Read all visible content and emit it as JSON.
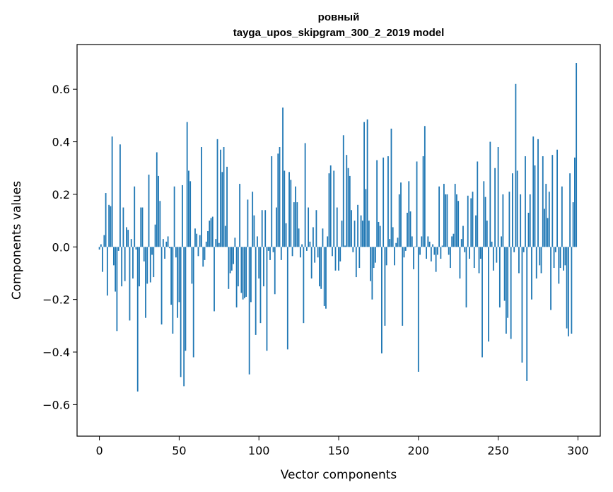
{
  "chart_data": {
    "type": "bar",
    "title_line1": "ровный",
    "title_line2": "tayga_upos_skipgram_300_2_2019 model",
    "xlabel": "Vector components",
    "ylabel": "Components values",
    "xlim": [
      -14,
      314
    ],
    "ylim": [
      -0.72,
      0.77
    ],
    "xticks": [
      0,
      50,
      100,
      150,
      200,
      250,
      300
    ],
    "xtick_labels": [
      "0",
      "50",
      "100",
      "150",
      "200",
      "250",
      "300"
    ],
    "yticks": [
      -0.6,
      -0.4,
      -0.2,
      0.0,
      0.2,
      0.4,
      0.6
    ],
    "ytick_labels": [
      "−0.6",
      "−0.4",
      "−0.2",
      "0.0",
      "0.2",
      "0.4",
      "0.6"
    ],
    "bar_color": "#1f77b4",
    "values": [
      -0.01,
      0.01,
      -0.095,
      0.045,
      0.205,
      -0.185,
      0.16,
      0.155,
      0.42,
      -0.07,
      -0.17,
      -0.32,
      -0.015,
      0.39,
      -0.15,
      0.15,
      -0.13,
      0.075,
      0.065,
      -0.28,
      0.03,
      -0.12,
      0.23,
      -0.01,
      -0.55,
      -0.15,
      0.15,
      0.15,
      -0.055,
      -0.27,
      -0.14,
      0.275,
      -0.135,
      -0.03,
      -0.115,
      0.085,
      0.36,
      0.27,
      0.175,
      -0.295,
      0.03,
      -0.045,
      0.02,
      0.04,
      -0.005,
      -0.22,
      -0.33,
      0.23,
      -0.04,
      -0.27,
      -0.21,
      -0.495,
      0.235,
      -0.53,
      -0.395,
      0.475,
      0.29,
      0.25,
      -0.14,
      -0.42,
      0.07,
      0.05,
      -0.035,
      0.045,
      0.38,
      -0.075,
      -0.05,
      0.02,
      0.06,
      0.1,
      0.11,
      0.115,
      -0.245,
      0.03,
      0.41,
      0.015,
      0.37,
      0.285,
      0.38,
      0.08,
      0.305,
      -0.16,
      -0.1,
      -0.09,
      -0.065,
      0.035,
      -0.23,
      -0.15,
      0.24,
      -0.175,
      -0.2,
      -0.195,
      -0.19,
      0.18,
      -0.485,
      -0.21,
      0.21,
      0.12,
      -0.335,
      0.04,
      -0.12,
      -0.29,
      0.14,
      -0.15,
      0.14,
      -0.395,
      -0.015,
      -0.05,
      0.345,
      -0.02,
      -0.18,
      0.15,
      0.355,
      0.38,
      -0.05,
      0.53,
      0.29,
      0.09,
      -0.39,
      0.285,
      0.255,
      -0.035,
      0.17,
      0.23,
      0.17,
      0.07,
      -0.04,
      0.01,
      -0.29,
      0.395,
      -0.015,
      0.15,
      0.02,
      -0.12,
      0.075,
      -0.06,
      0.14,
      -0.04,
      -0.15,
      -0.16,
      0.07,
      -0.225,
      -0.235,
      0.04,
      0.28,
      0.31,
      -0.035,
      0.29,
      -0.09,
      0.15,
      -0.09,
      -0.055,
      0.1,
      0.425,
      0.005,
      0.35,
      0.3,
      0.27,
      0.14,
      -0.02,
      0.1,
      -0.115,
      0.16,
      -0.08,
      0.12,
      0.1,
      0.475,
      0.22,
      0.485,
      0.1,
      -0.13,
      -0.2,
      -0.08,
      -0.06,
      0.33,
      0.095,
      0.08,
      -0.405,
      0.34,
      -0.3,
      -0.07,
      0.345,
      0.03,
      0.45,
      0.075,
      -0.07,
      0.015,
      0.035,
      0.2,
      0.245,
      -0.3,
      -0.04,
      -0.015,
      0.13,
      0.25,
      0.135,
      0.04,
      -0.085,
      0.0,
      0.325,
      -0.475,
      -0.03,
      0.04,
      0.345,
      0.46,
      -0.045,
      0.04,
      0.02,
      -0.055,
      0.01,
      -0.03,
      -0.095,
      -0.03,
      0.23,
      -0.045,
      0.005,
      0.24,
      0.2,
      0.2,
      -0.03,
      -0.08,
      0.04,
      0.05,
      0.24,
      0.2,
      0.175,
      -0.12,
      0.03,
      0.08,
      -0.02,
      -0.23,
      0.195,
      -0.045,
      0.185,
      0.21,
      -0.08,
      0.12,
      0.325,
      -0.1,
      -0.045,
      -0.42,
      0.25,
      0.19,
      0.1,
      -0.36,
      0.4,
      0.02,
      -0.09,
      0.3,
      -0.06,
      0.38,
      -0.23,
      0.04,
      0.2,
      -0.205,
      -0.33,
      -0.27,
      0.21,
      -0.35,
      0.28,
      -0.02,
      0.62,
      0.29,
      -0.1,
      0.2,
      -0.44,
      -0.02,
      0.345,
      -0.51,
      0.13,
      0.2,
      -0.2,
      0.42,
      0.31,
      -0.12,
      0.41,
      -0.07,
      -0.1,
      0.345,
      0.145,
      0.24,
      0.11,
      0.21,
      -0.24,
      0.35,
      -0.08,
      -0.02,
      0.37,
      -0.14,
      -0.08,
      0.23,
      -0.09,
      -0.07,
      -0.31,
      -0.34,
      0.28,
      -0.33,
      0.17,
      0.34,
      0.7
    ]
  }
}
